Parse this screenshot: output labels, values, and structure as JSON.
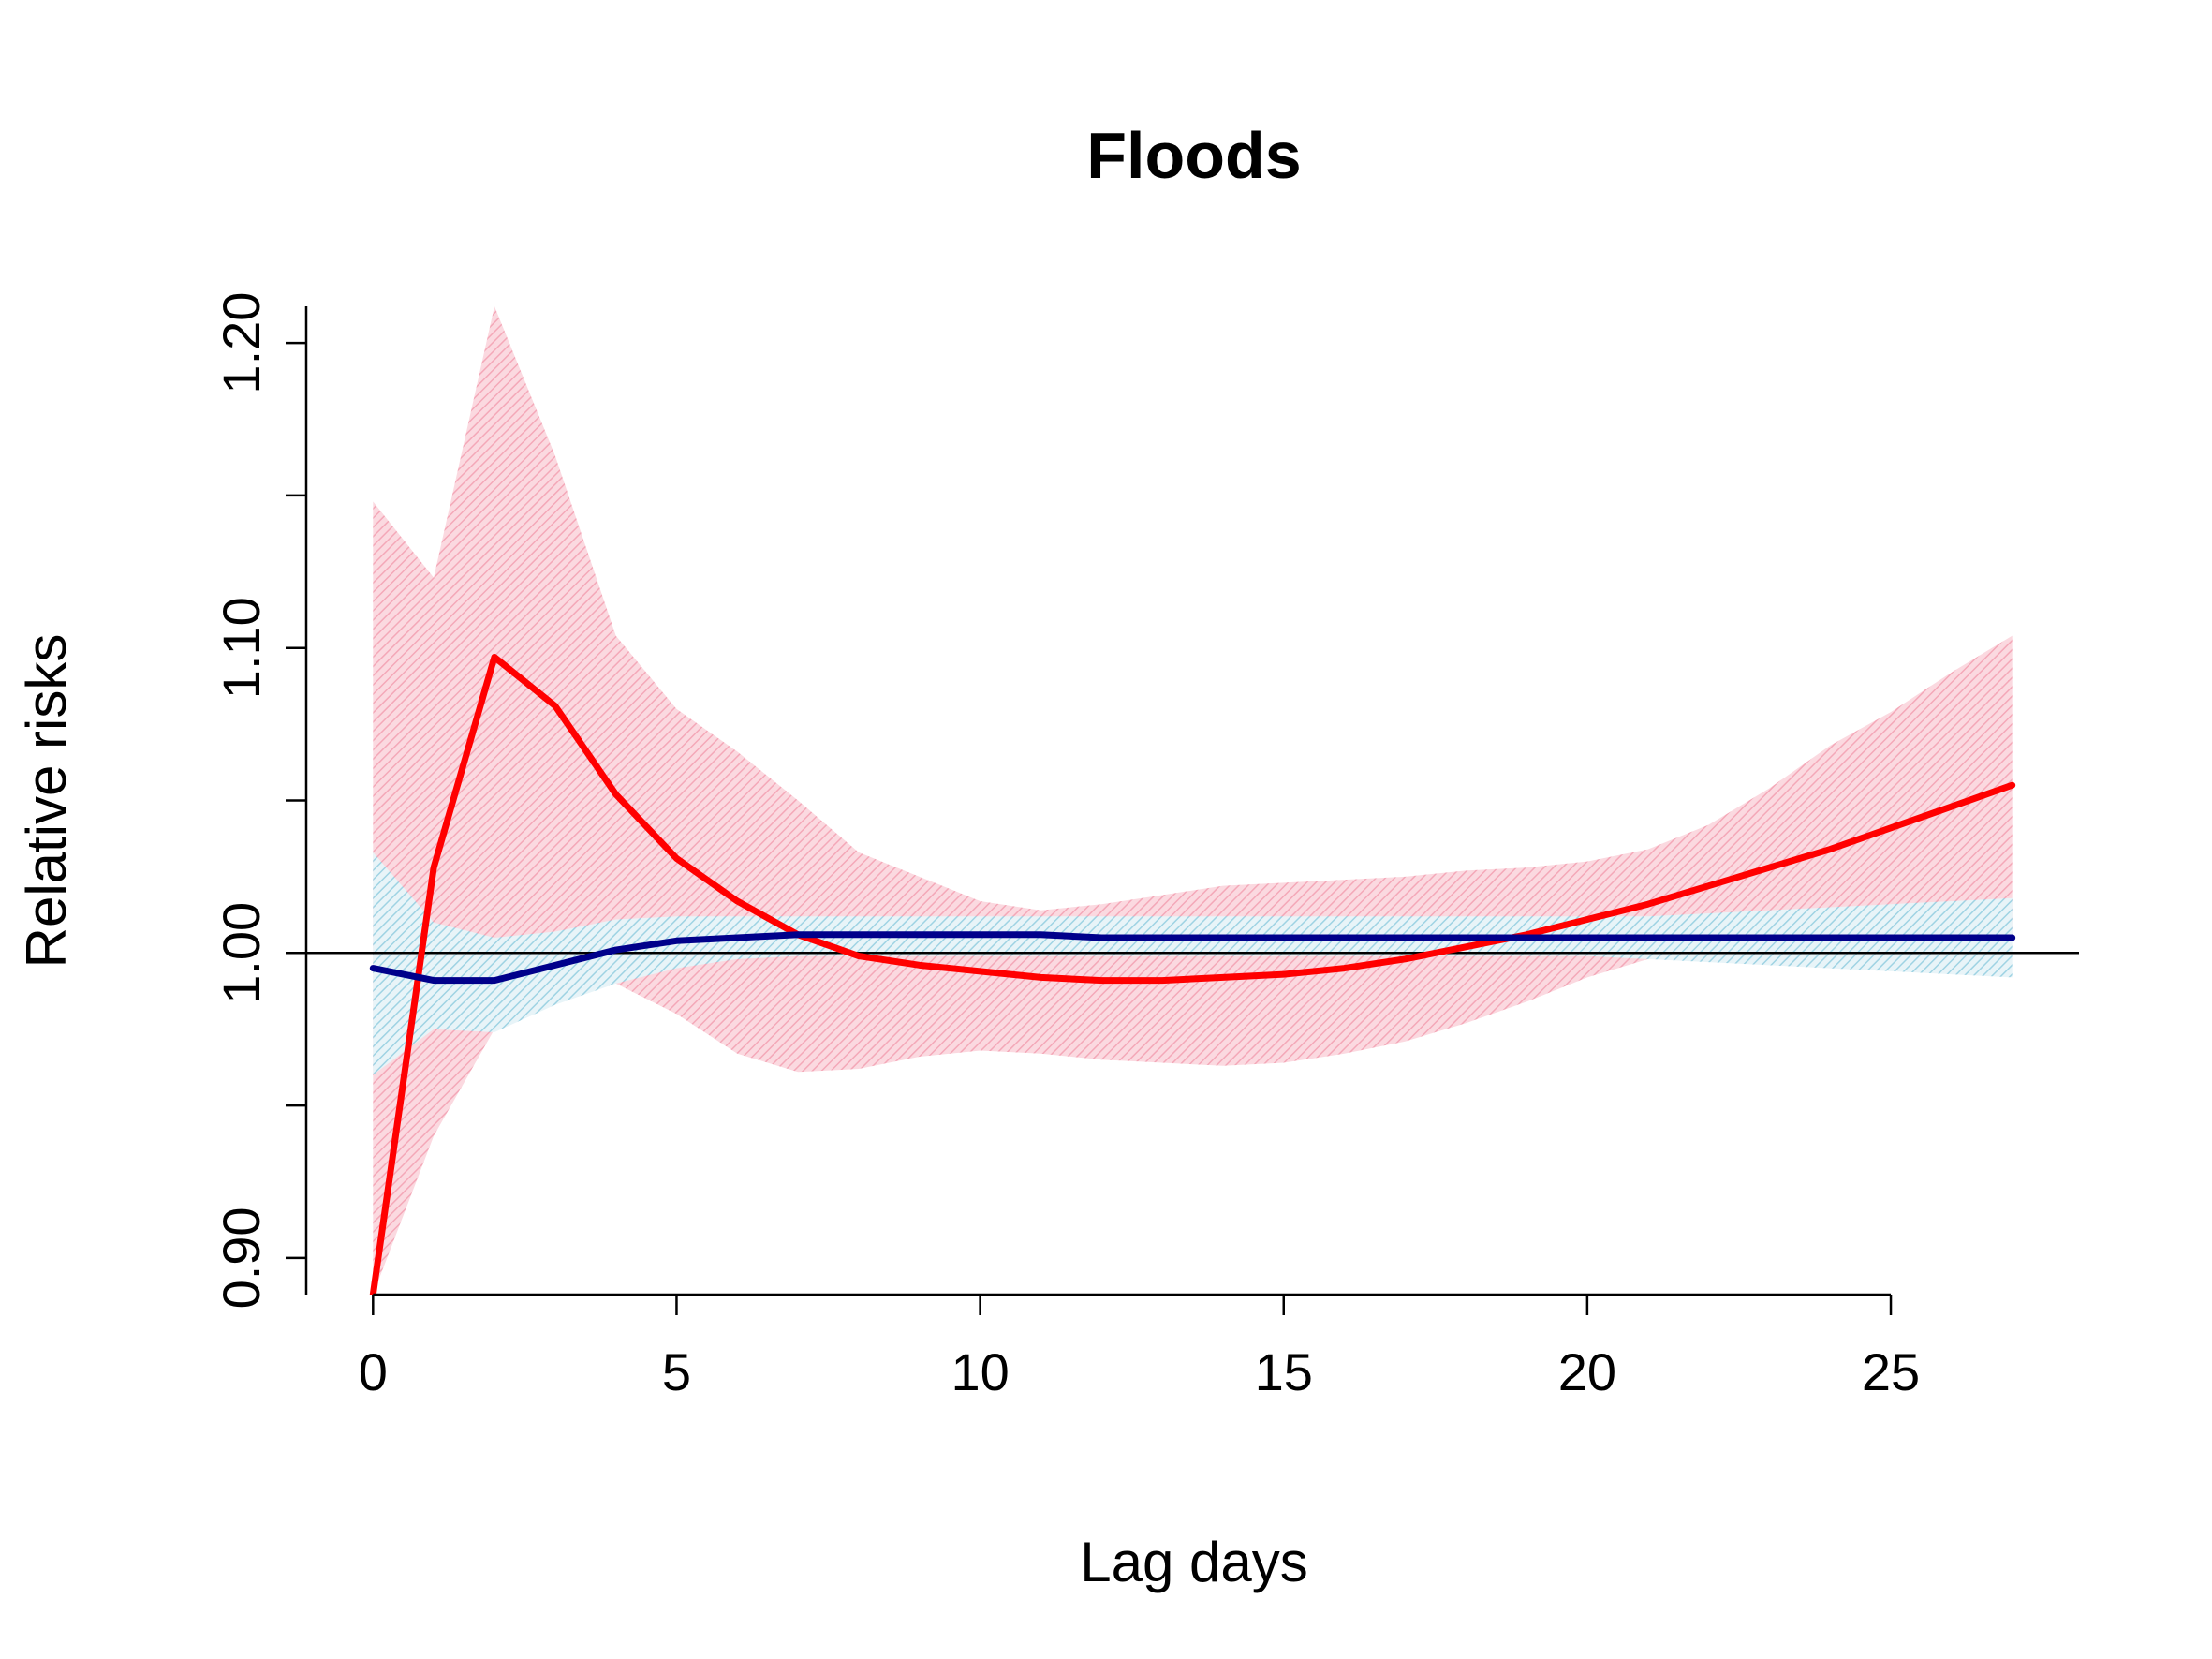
{
  "chart_data": {
    "type": "line",
    "title": "Floods",
    "xlabel": "Lag days",
    "ylabel": "Relative risks",
    "xlim": [
      -1.1,
      28.1
    ],
    "ylim": [
      0.888,
      1.212
    ],
    "x_ticks": [
      0,
      5,
      10,
      15,
      20,
      25
    ],
    "y_ticks": [
      0.9,
      0.95,
      1.0,
      1.05,
      1.1,
      1.15,
      1.2
    ],
    "y_tick_labels": [
      "0.90",
      "",
      "1.00",
      "",
      "1.10",
      "",
      "1.20"
    ],
    "reference_line": 1.0,
    "grid": false,
    "legend": "none",
    "x": [
      0,
      1,
      2,
      3,
      4,
      5,
      6,
      7,
      8,
      9,
      10,
      11,
      12,
      13,
      14,
      15,
      16,
      17,
      18,
      19,
      20,
      21,
      22,
      23,
      24,
      25,
      26,
      27
    ],
    "series": [
      {
        "color": "#ff0000",
        "band_color": "#f7b5c2",
        "values": [
          0.888,
          1.028,
          1.097,
          1.081,
          1.052,
          1.031,
          1.017,
          1.006,
          0.999,
          0.996,
          0.994,
          0.992,
          0.991,
          0.991,
          0.992,
          0.993,
          0.995,
          0.998,
          1.002,
          1.006,
          1.011,
          1.016,
          1.022,
          1.028,
          1.034,
          1.041,
          1.048,
          1.055
        ],
        "lower": [
          0.888,
          0.94,
          0.975,
          0.99,
          0.99,
          0.98,
          0.967,
          0.961,
          0.962,
          0.966,
          0.968,
          0.967,
          0.965,
          0.964,
          0.963,
          0.964,
          0.967,
          0.971,
          0.977,
          0.984,
          0.992,
          0.998,
          1.0,
          1.001,
          1.002,
          1.003,
          1.004,
          1.005
        ],
        "upper": [
          1.148,
          1.123,
          1.212,
          1.163,
          1.104,
          1.08,
          1.066,
          1.05,
          1.033,
          1.025,
          1.017,
          1.014,
          1.016,
          1.019,
          1.022,
          1.023,
          1.024,
          1.025,
          1.027,
          1.028,
          1.03,
          1.034,
          1.042,
          1.054,
          1.068,
          1.079,
          1.092,
          1.104
        ]
      },
      {
        "color": "#00008b",
        "band_color": "#add8e6",
        "values": [
          0.995,
          0.991,
          0.991,
          0.996,
          1.001,
          1.004,
          1.005,
          1.006,
          1.006,
          1.006,
          1.006,
          1.006,
          1.005,
          1.005,
          1.005,
          1.005,
          1.005,
          1.005,
          1.005,
          1.005,
          1.005,
          1.005,
          1.005,
          1.005,
          1.005,
          1.005,
          1.005,
          1.005
        ],
        "lower": [
          0.96,
          0.975,
          0.974,
          0.983,
          0.99,
          0.995,
          0.998,
          0.999,
          0.999,
          0.999,
          0.999,
          0.999,
          0.999,
          0.999,
          0.999,
          0.999,
          0.999,
          0.999,
          0.999,
          0.999,
          0.999,
          0.998,
          0.997,
          0.996,
          0.995,
          0.994,
          0.993,
          0.992
        ],
        "upper": [
          1.033,
          1.01,
          1.005,
          1.007,
          1.011,
          1.012,
          1.012,
          1.012,
          1.012,
          1.012,
          1.012,
          1.012,
          1.012,
          1.012,
          1.012,
          1.012,
          1.012,
          1.012,
          1.012,
          1.012,
          1.012,
          1.012,
          1.013,
          1.014,
          1.015,
          1.016,
          1.017,
          1.018
        ]
      }
    ]
  }
}
